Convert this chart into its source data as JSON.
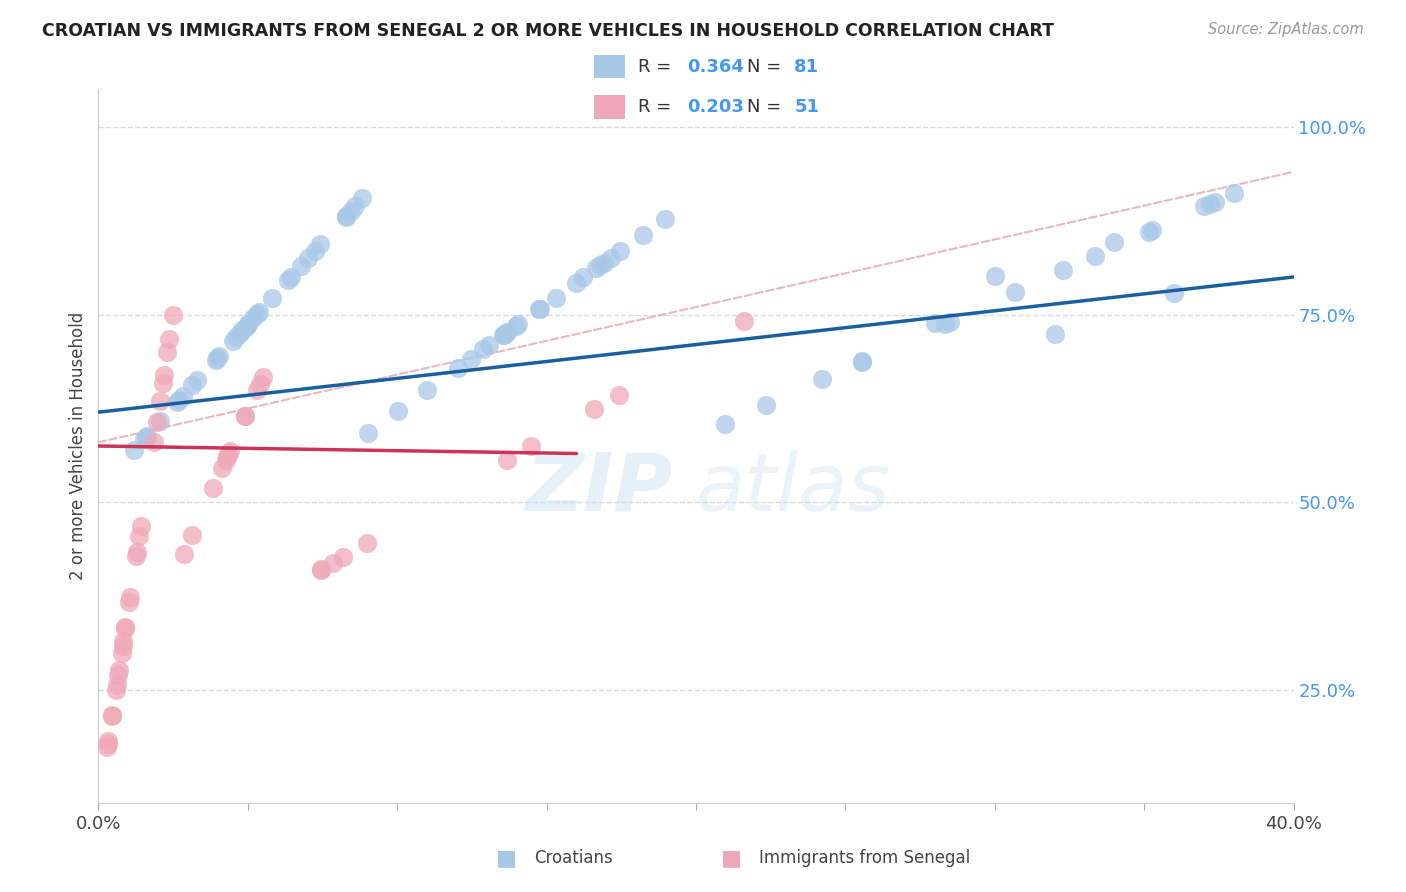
{
  "title": "CROATIAN VS IMMIGRANTS FROM SENEGAL 2 OR MORE VEHICLES IN HOUSEHOLD CORRELATION CHART",
  "source": "Source: ZipAtlas.com",
  "ylabel": "2 or more Vehicles in Household",
  "xlim": [
    0.0,
    0.4
  ],
  "ylim": [
    0.1,
    1.05
  ],
  "xtick_positions": [
    0.0,
    0.05,
    0.1,
    0.15,
    0.2,
    0.25,
    0.3,
    0.35,
    0.4
  ],
  "xticklabels": [
    "0.0%",
    "",
    "",
    "",
    "",
    "",
    "",
    "",
    "40.0%"
  ],
  "ytick_positions": [
    0.25,
    0.5,
    0.75,
    1.0
  ],
  "ytick_labels": [
    "25.0%",
    "50.0%",
    "75.0%",
    "100.0%"
  ],
  "croatian_color": "#a8c8e8",
  "senegal_color": "#f0a8b8",
  "trend_blue": "#1a5fa0",
  "trend_pink": "#cc3355",
  "diagonal_color": "#e8b0b8",
  "legend_label_blue": "Croatians",
  "legend_label_pink": "Immigrants from Senegal",
  "watermark_zip": "ZIP",
  "watermark_atlas": "atlas",
  "background_color": "#ffffff",
  "grid_color": "#d8d8e8",
  "tick_color": "#4499ee"
}
